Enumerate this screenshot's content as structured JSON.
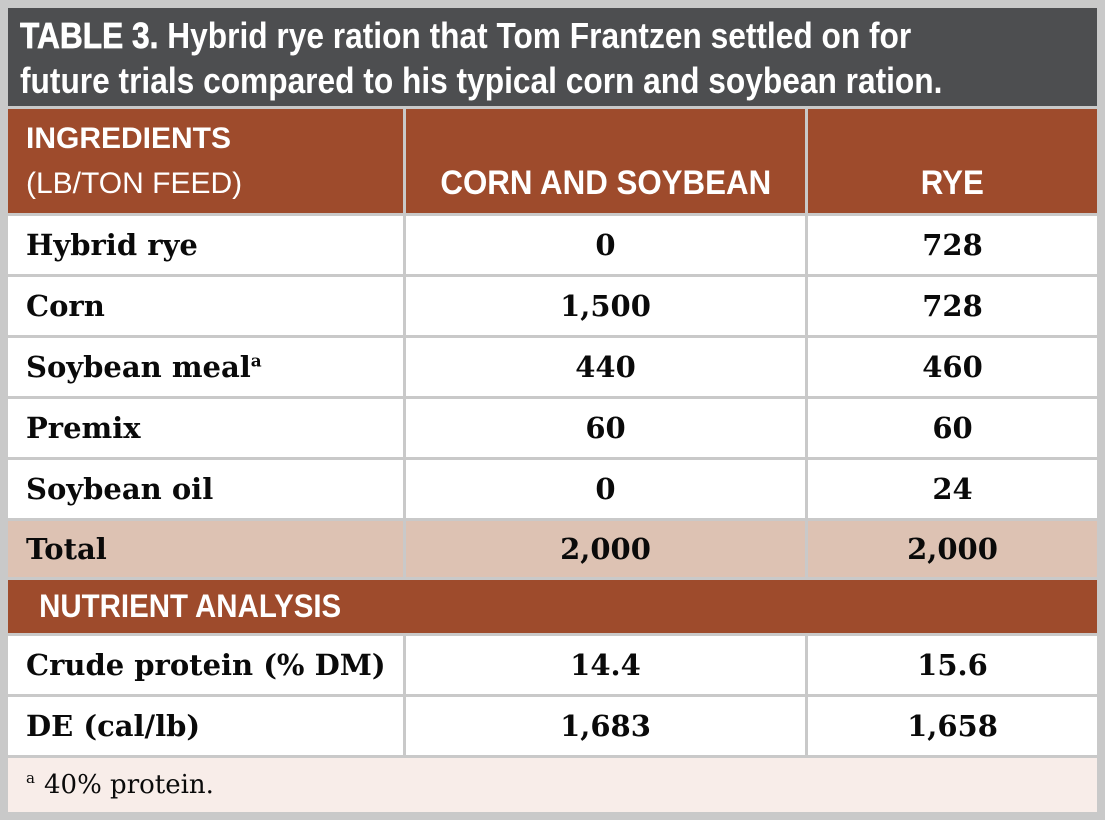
{
  "title": {
    "prefix": "TABLE 3.",
    "line1": "Hybrid rye ration that Tom Frantzen settled on for",
    "line2": "future trials compared to his typical corn and soybean ration."
  },
  "header": {
    "ingredients_label": "INGREDIENTS",
    "ingredients_unit": "(LB/TON FEED)",
    "col_corn_soybean": "CORN AND SOYBEAN",
    "col_rye": "RYE"
  },
  "ingredient_rows": [
    {
      "name": "Hybrid rye",
      "corn_soybean": "0",
      "rye": "728"
    },
    {
      "name": "Corn",
      "corn_soybean": "1,500",
      "rye": "728"
    },
    {
      "name": "Soybean meal",
      "sup": "a",
      "corn_soybean": "440",
      "rye": "460"
    },
    {
      "name": "Premix",
      "corn_soybean": "60",
      "rye": "60"
    },
    {
      "name": "Soybean oil",
      "corn_soybean": "0",
      "rye": "24"
    }
  ],
  "total_row": {
    "name": "Total",
    "corn_soybean": "2,000",
    "rye": "2,000"
  },
  "nutrient_section": {
    "header": "NUTRIENT ANALYSIS"
  },
  "nutrient_rows": [
    {
      "name": "Crude protein (% DM)",
      "corn_soybean": "14.4",
      "rye": "15.6"
    },
    {
      "name": "DE (cal/lb)",
      "corn_soybean": "1,683",
      "rye": "1,658"
    }
  ],
  "footnote": {
    "marker": "a",
    "text": "40% protein."
  },
  "colors": {
    "title_bg": "#4D4E50",
    "accent_brown": "#9E4B2C",
    "total_row_bg": "#DDC2B3",
    "footnote_bg": "#F8EDE9",
    "gridline_gray": "#C9C9C9",
    "text_white": "#FFFFFF",
    "text_black": "#0A0A0A"
  },
  "chart_data": {
    "type": "table",
    "title": "TABLE 3. Hybrid rye ration that Tom Frantzen settled on for future trials compared to his typical corn and soybean ration.",
    "columns": [
      "INGREDIENTS (LB/TON FEED)",
      "CORN AND SOYBEAN",
      "RYE"
    ],
    "rows": [
      [
        "Hybrid rye",
        0,
        728
      ],
      [
        "Corn",
        1500,
        728
      ],
      [
        "Soybean meal (a)",
        440,
        460
      ],
      [
        "Premix",
        60,
        60
      ],
      [
        "Soybean oil",
        0,
        24
      ],
      [
        "Total",
        2000,
        2000
      ]
    ],
    "nutrient_analysis_rows": [
      [
        "Crude protein (% DM)",
        14.4,
        15.6
      ],
      [
        "DE (cal/lb)",
        1683,
        1658
      ]
    ],
    "footnote": "a 40% protein."
  }
}
